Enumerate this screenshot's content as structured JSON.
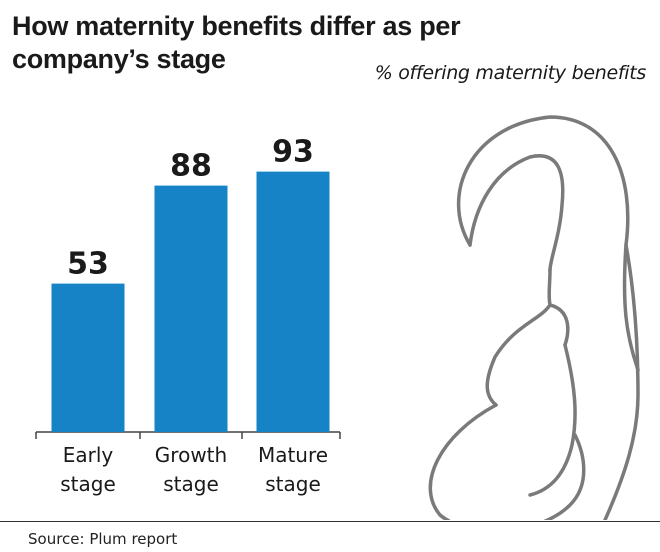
{
  "header": {
    "title": "How maternity benefits differ as per company’s stage",
    "subtitle": "% offering maternity benefits"
  },
  "footer": {
    "source": "Source: Plum report"
  },
  "illustration": {
    "icon": "pregnant-woman-icon",
    "stroke_color": "#7a7a7a"
  },
  "colors": {
    "bar": "#1583c6",
    "axis": "#444444"
  },
  "chart_data": {
    "type": "bar",
    "title": "How maternity benefits differ as per company’s stage",
    "subtitle": "% offering maternity benefits",
    "categories": [
      [
        "Early",
        "stage"
      ],
      [
        "Growth",
        "stage"
      ],
      [
        "Mature",
        "stage"
      ]
    ],
    "values": [
      53,
      88,
      93
    ],
    "ylim": [
      0,
      100
    ],
    "grid": false,
    "legend": "none"
  }
}
